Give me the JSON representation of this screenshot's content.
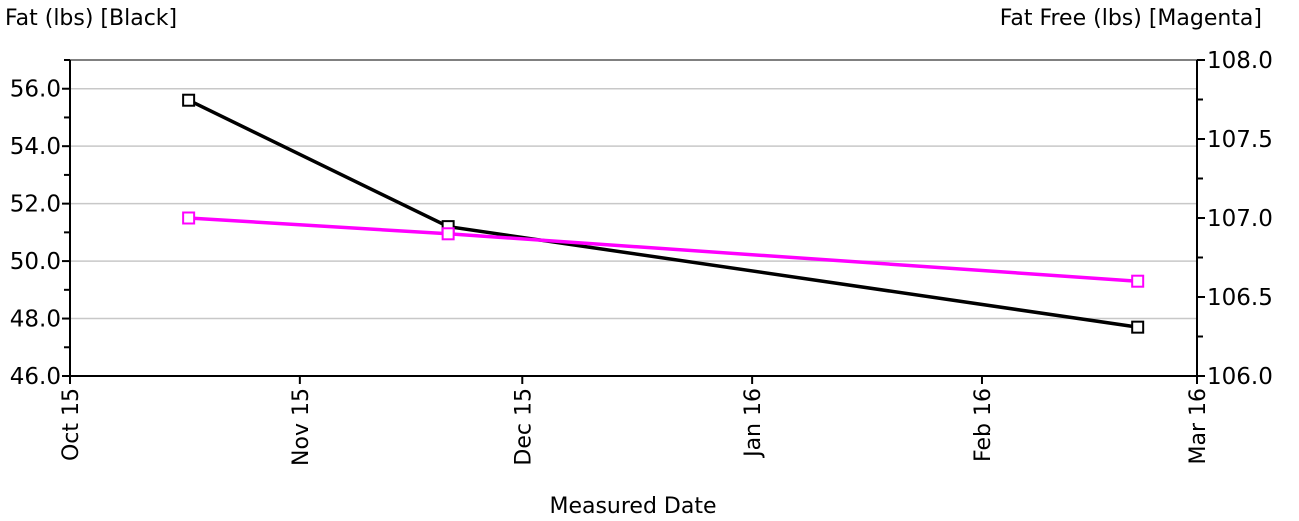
{
  "chart_data": {
    "type": "line",
    "left_axis_title": "Fat (lbs) [Black]",
    "right_axis_title": "Fat Free (lbs) [Magenta]",
    "xlabel": "Measured Date",
    "x_ticks": [
      "Oct 15",
      "Nov 15",
      "Dec 15",
      "Jan 16",
      "Feb 16",
      "Mar 16"
    ],
    "x_tick_dates": [
      "2015-10-01",
      "2015-11-01",
      "2015-12-01",
      "2016-01-01",
      "2016-02-01",
      "2016-03-01"
    ],
    "xlim": [
      "2015-10-01",
      "2016-03-01"
    ],
    "y_left_ticks": [
      "46.0",
      "48.0",
      "50.0",
      "52.0",
      "54.0",
      "56.0"
    ],
    "y_left_lim": [
      46,
      57
    ],
    "y_right_ticks": [
      "106.0",
      "106.5",
      "107.0",
      "107.5",
      "108.0"
    ],
    "y_right_lim": [
      106,
      108
    ],
    "grid": true,
    "series": [
      {
        "name": "Fat (lbs)",
        "axis": "left",
        "color": "#000000",
        "x": [
          "2015-10-17",
          "2015-11-21",
          "2016-02-22"
        ],
        "y": [
          55.6,
          51.2,
          47.7
        ]
      },
      {
        "name": "Fat Free (lbs)",
        "axis": "right",
        "color": "#ff00ff",
        "x": [
          "2015-10-17",
          "2015-11-21",
          "2016-02-22"
        ],
        "y": [
          107.0,
          106.9,
          106.6
        ]
      }
    ]
  }
}
